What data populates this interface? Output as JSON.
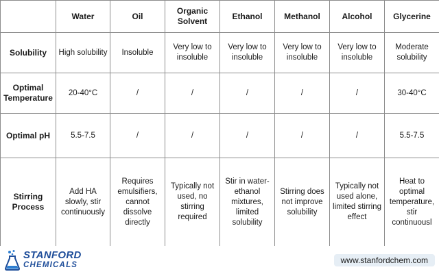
{
  "table": {
    "columns": [
      "",
      "Water",
      "Oil",
      "Organic Solvent",
      "Ethanol",
      "Methanol",
      "Alcohol",
      "Glycerine"
    ],
    "rows": [
      {
        "label": "Solubility",
        "cells": [
          "High solubility",
          "Insoluble",
          "Very low to insoluble",
          "Very low to insoluble",
          "Very low to insoluble",
          "Very low to insoluble",
          "Moderate solubility"
        ]
      },
      {
        "label": "Optimal Temperature",
        "cells": [
          "20-40°C",
          "/",
          "/",
          "/",
          "/",
          "/",
          "30-40°C"
        ]
      },
      {
        "label": "Optimal pH",
        "cells": [
          "5.5-7.5",
          "/",
          "/",
          "/",
          "/",
          "/",
          "5.5-7.5"
        ]
      },
      {
        "label": "Stirring Process",
        "cells": [
          "Add HA slowly, stir continuously",
          "Requires emulsifiers, cannot dissolve directly",
          "Typically not used, no stirring required",
          "Stir in water-ethanol mixtures, limited solubility",
          "Stirring does not improve solubility",
          "Typically not used alone, limited stirring effect",
          "Heat to optimal temperature, stir continuousl"
        ]
      }
    ]
  },
  "footer": {
    "logo_line1": "STANFORD",
    "logo_line2": "CHEMICALS",
    "url": "www.stanfordchem.com",
    "brand_color": "#1f4e9a",
    "url_bg": "#e6eef5"
  }
}
